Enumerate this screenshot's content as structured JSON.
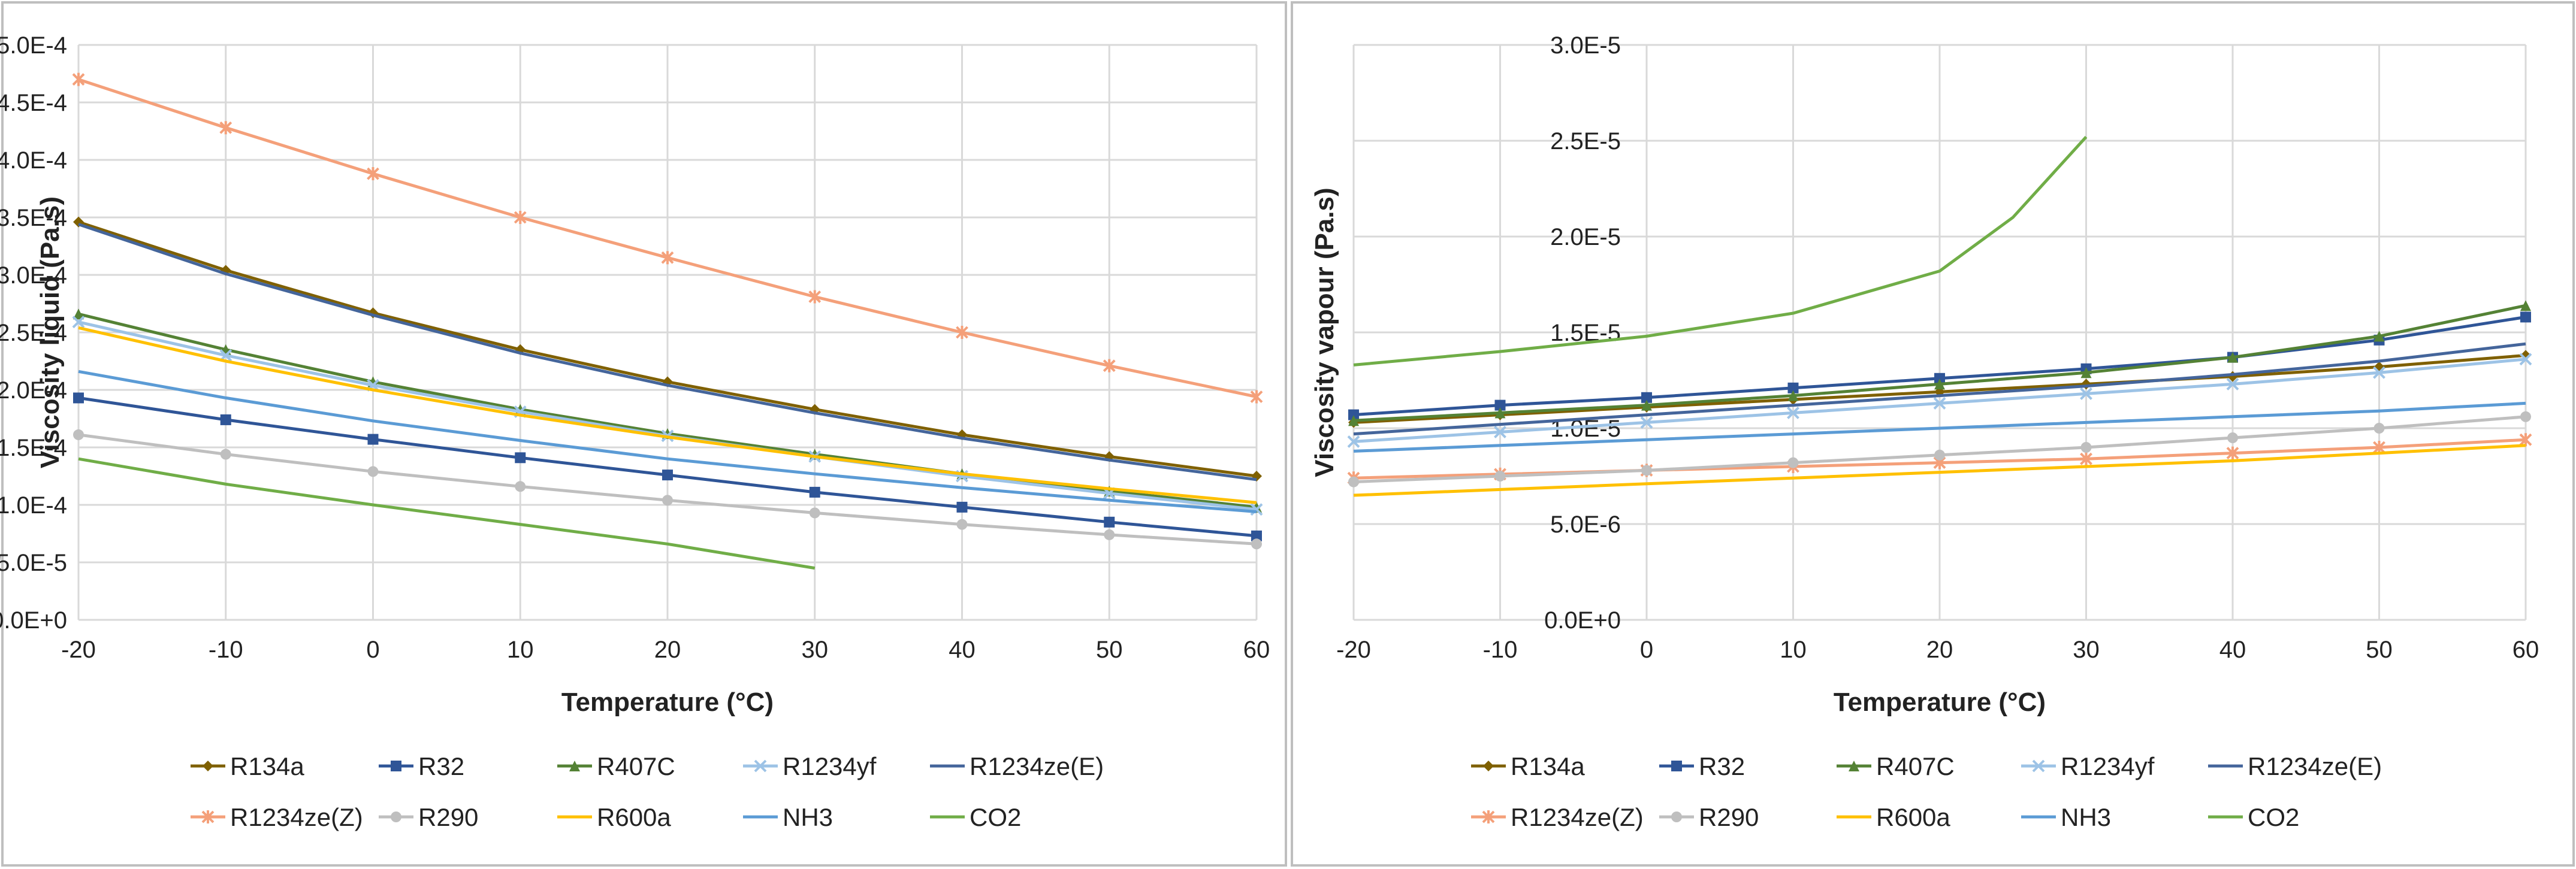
{
  "chart_data": [
    {
      "type": "line",
      "title": "",
      "xlabel": "Temperature (°C)",
      "ylabel": "Viscosity liquid (Pa.s)",
      "xlim": [
        -20,
        60
      ],
      "ylim": [
        0,
        0.0005
      ],
      "x_ticks": [
        -20,
        -10,
        0,
        10,
        20,
        30,
        40,
        50,
        60
      ],
      "x_tick_labels": [
        "-20",
        "-10",
        "0",
        "10",
        "20",
        "30",
        "40",
        "50",
        "60"
      ],
      "y_ticks": [
        0,
        5e-05,
        0.0001,
        0.00015,
        0.0002,
        0.00025,
        0.0003,
        0.00035,
        0.0004,
        0.00045,
        0.0005
      ],
      "y_tick_labels": [
        "0.0E+0",
        "5.0E-5",
        "1.0E-4",
        "1.5E-4",
        "2.0E-4",
        "2.5E-4",
        "3.0E-4",
        "3.5E-4",
        "4.0E-4",
        "4.5E-4",
        "5.0E-4"
      ],
      "grid": true,
      "legend_position": "bottom",
      "series": [
        {
          "name": "R134a",
          "color": "#7f6000",
          "marker": "diamond",
          "x": [
            -20,
            -10,
            0,
            10,
            20,
            30,
            40,
            50,
            60
          ],
          "values": [
            0.000346,
            0.000304,
            0.000267,
            0.000235,
            0.000207,
            0.000183,
            0.000161,
            0.000142,
            0.000125
          ]
        },
        {
          "name": "R32",
          "color": "#2f5597",
          "marker": "square",
          "x": [
            -20,
            -10,
            0,
            10,
            20,
            30,
            40,
            50,
            60
          ],
          "values": [
            0.000193,
            0.000174,
            0.000157,
            0.000141,
            0.000126,
            0.000111,
            9.8e-05,
            8.5e-05,
            7.3e-05
          ]
        },
        {
          "name": "R407C",
          "color": "#548235",
          "marker": "triangle",
          "x": [
            -20,
            -10,
            0,
            10,
            20,
            30,
            40,
            50,
            60
          ],
          "values": [
            0.000266,
            0.000235,
            0.000207,
            0.000183,
            0.000162,
            0.000144,
            0.000127,
            0.000112,
            9.8e-05
          ]
        },
        {
          "name": "R1234yf",
          "color": "#9dc3e6",
          "marker": "x",
          "x": [
            -20,
            -10,
            0,
            10,
            20,
            30,
            40,
            50,
            60
          ],
          "values": [
            0.000259,
            0.00023,
            0.000204,
            0.000181,
            0.00016,
            0.000142,
            0.000125,
            0.00011,
            9.6e-05
          ]
        },
        {
          "name": "R1234ze(E)",
          "color": "#44659b",
          "marker": "none",
          "x": [
            -20,
            -10,
            0,
            10,
            20,
            30,
            40,
            50,
            60
          ],
          "values": [
            0.000344,
            0.000301,
            0.000265,
            0.000232,
            0.000204,
            0.00018,
            0.000158,
            0.000139,
            0.000122
          ]
        },
        {
          "name": "R1234ze(Z)",
          "color": "#f4a07a",
          "marker": "star",
          "x": [
            -20,
            -10,
            0,
            10,
            20,
            30,
            40,
            50,
            60
          ],
          "values": [
            0.00047,
            0.000428,
            0.000388,
            0.00035,
            0.000315,
            0.000281,
            0.00025,
            0.000221,
            0.000194
          ]
        },
        {
          "name": "R290",
          "color": "#bfbfbf",
          "marker": "circle",
          "x": [
            -20,
            -10,
            0,
            10,
            20,
            30,
            40,
            50,
            60
          ],
          "values": [
            0.000161,
            0.000144,
            0.000129,
            0.000116,
            0.000104,
            9.3e-05,
            8.3e-05,
            7.4e-05,
            6.6e-05
          ]
        },
        {
          "name": "R600a",
          "color": "#ffc000",
          "marker": "none",
          "x": [
            -20,
            -10,
            0,
            10,
            20,
            30,
            40,
            50,
            60
          ],
          "values": [
            0.000254,
            0.000225,
            0.0002,
            0.000178,
            0.000159,
            0.000142,
            0.000127,
            0.000114,
            0.000102
          ]
        },
        {
          "name": "NH3",
          "color": "#5b9bd5",
          "marker": "none",
          "x": [
            -20,
            -10,
            0,
            10,
            20,
            30,
            40,
            50,
            60
          ],
          "values": [
            0.000216,
            0.000193,
            0.000173,
            0.000156,
            0.00014,
            0.000127,
            0.000115,
            0.000104,
            9.4e-05
          ]
        },
        {
          "name": "CO2",
          "color": "#70ad47",
          "marker": "none",
          "x": [
            -20,
            -10,
            0,
            10,
            20,
            30
          ],
          "values": [
            0.00014,
            0.000118,
            0.0001,
            8.3e-05,
            6.6e-05,
            4.5e-05
          ]
        }
      ]
    },
    {
      "type": "line",
      "title": "",
      "xlabel": "Temperature (°C)",
      "ylabel": "Viscosity vapour (Pa.s)",
      "xlim": [
        -20,
        60
      ],
      "ylim": [
        0,
        3e-05
      ],
      "x_ticks": [
        -20,
        -10,
        0,
        10,
        20,
        30,
        40,
        50,
        60
      ],
      "x_tick_labels": [
        "-20",
        "-10",
        "0",
        "10",
        "20",
        "30",
        "40",
        "50",
        "60"
      ],
      "y_ticks": [
        0,
        5e-06,
        1e-05,
        1.5e-05,
        2e-05,
        2.5e-05,
        3e-05
      ],
      "y_tick_labels": [
        "0.0E+0",
        "5.0E-6",
        "1.0E-5",
        "1.5E-5",
        "2.0E-5",
        "2.5E-5",
        "3.0E-5"
      ],
      "grid": true,
      "legend_position": "bottom",
      "series": [
        {
          "name": "R134a",
          "color": "#7f6000",
          "marker": "diamond",
          "x": [
            -20,
            -10,
            0,
            10,
            20,
            30,
            40,
            50,
            60
          ],
          "values": [
            1.03e-05,
            1.07e-05,
            1.11e-05,
            1.15e-05,
            1.19e-05,
            1.23e-05,
            1.27e-05,
            1.32e-05,
            1.38e-05
          ]
        },
        {
          "name": "R32",
          "color": "#2f5597",
          "marker": "square",
          "x": [
            -20,
            -10,
            0,
            10,
            20,
            30,
            40,
            50,
            60
          ],
          "values": [
            1.07e-05,
            1.12e-05,
            1.16e-05,
            1.21e-05,
            1.26e-05,
            1.31e-05,
            1.37e-05,
            1.46e-05,
            1.58e-05
          ]
        },
        {
          "name": "R407C",
          "color": "#548235",
          "marker": "triangle",
          "x": [
            -20,
            -10,
            0,
            10,
            20,
            30,
            40,
            50,
            60
          ],
          "values": [
            1.04e-05,
            1.08e-05,
            1.12e-05,
            1.17e-05,
            1.23e-05,
            1.29e-05,
            1.37e-05,
            1.48e-05,
            1.64e-05
          ]
        },
        {
          "name": "R1234yf",
          "color": "#9dc3e6",
          "marker": "x",
          "x": [
            -20,
            -10,
            0,
            10,
            20,
            30,
            40,
            50,
            60
          ],
          "values": [
            9.3e-06,
            9.8e-06,
            1.03e-05,
            1.08e-05,
            1.13e-05,
            1.18e-05,
            1.23e-05,
            1.29e-05,
            1.36e-05
          ]
        },
        {
          "name": "R1234ze(E)",
          "color": "#44659b",
          "marker": "none",
          "x": [
            -20,
            -10,
            0,
            10,
            20,
            30,
            40,
            50,
            60
          ],
          "values": [
            9.7e-06,
            1.02e-05,
            1.07e-05,
            1.12e-05,
            1.17e-05,
            1.22e-05,
            1.28e-05,
            1.35e-05,
            1.44e-05
          ]
        },
        {
          "name": "R1234ze(Z)",
          "color": "#f4a07a",
          "marker": "star",
          "x": [
            -20,
            -10,
            0,
            10,
            20,
            30,
            40,
            50,
            60
          ],
          "values": [
            7.4e-06,
            7.6e-06,
            7.8e-06,
            8e-06,
            8.2e-06,
            8.4e-06,
            8.7e-06,
            9e-06,
            9.4e-06
          ]
        },
        {
          "name": "R290",
          "color": "#bfbfbf",
          "marker": "circle",
          "x": [
            -20,
            -10,
            0,
            10,
            20,
            30,
            40,
            50,
            60
          ],
          "values": [
            7.2e-06,
            7.5e-06,
            7.8e-06,
            8.2e-06,
            8.6e-06,
            9e-06,
            9.5e-06,
            1e-05,
            1.06e-05
          ]
        },
        {
          "name": "R600a",
          "color": "#ffc000",
          "marker": "none",
          "x": [
            -20,
            -10,
            0,
            10,
            20,
            30,
            40,
            50,
            60
          ],
          "values": [
            6.5e-06,
            6.8e-06,
            7.1e-06,
            7.4e-06,
            7.7e-06,
            8e-06,
            8.3e-06,
            8.7e-06,
            9.1e-06
          ]
        },
        {
          "name": "NH3",
          "color": "#5b9bd5",
          "marker": "none",
          "x": [
            -20,
            -10,
            0,
            10,
            20,
            30,
            40,
            50,
            60
          ],
          "values": [
            8.8e-06,
            9.1e-06,
            9.4e-06,
            9.7e-06,
            1e-05,
            1.03e-05,
            1.06e-05,
            1.09e-05,
            1.13e-05
          ]
        },
        {
          "name": "CO2",
          "color": "#70ad47",
          "marker": "none",
          "x": [
            -20,
            -10,
            0,
            10,
            20,
            25,
            30
          ],
          "values": [
            1.33e-05,
            1.4e-05,
            1.48e-05,
            1.6e-05,
            1.82e-05,
            2.1e-05,
            2.52e-05
          ]
        }
      ]
    }
  ]
}
